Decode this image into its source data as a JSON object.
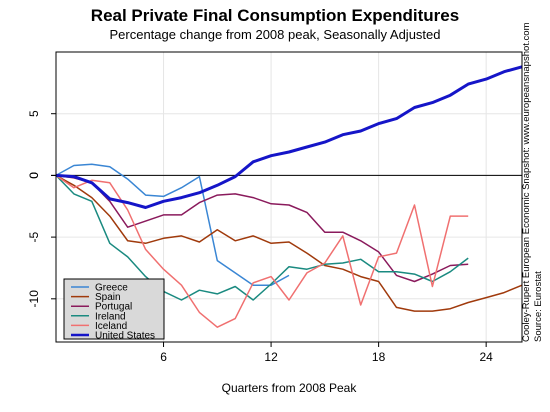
{
  "chart_data": {
    "type": "line",
    "title": "Real Private Final Consumption Expenditures",
    "subtitle": "Percentage change from 2008 peak, Seasonally Adjusted",
    "xlabel": "Quarters from 2008 Peak",
    "ylabel": "",
    "xlim": [
      0,
      26
    ],
    "ylim": [
      -13.5,
      10
    ],
    "xticks": [
      6,
      12,
      18,
      24
    ],
    "yticks": [
      5,
      0,
      -5,
      -10
    ],
    "grid": true,
    "legend_position": "bottom-left",
    "side_notes": [
      "Cooley-Rupert European Economic Snapshot:  www.europeansnapshot.com",
      "Source:  Eurostat"
    ],
    "series": [
      {
        "name": "Greece",
        "color": "#3a86d4",
        "width": 1.5,
        "x": [
          0,
          1,
          2,
          3,
          4,
          5,
          6,
          7,
          8,
          9,
          10,
          11,
          12,
          13
        ],
        "y": [
          0,
          0.8,
          0.9,
          0.7,
          -0.3,
          -1.6,
          -1.7,
          -1.0,
          -0.1,
          -6.9,
          -7.9,
          -8.9,
          -8.9,
          -8.1
        ]
      },
      {
        "name": "Spain",
        "color": "#a03a0c",
        "width": 1.5,
        "x": [
          0,
          1,
          2,
          3,
          4,
          5,
          6,
          7,
          8,
          9,
          10,
          11,
          12,
          13,
          14,
          15,
          16,
          17,
          18,
          19,
          20,
          21,
          22,
          23,
          24,
          25,
          26
        ],
        "y": [
          0,
          -0.8,
          -1.8,
          -3.3,
          -5.3,
          -5.5,
          -5.1,
          -4.9,
          -5.4,
          -4.4,
          -5.3,
          -4.9,
          -5.5,
          -5.4,
          -6.3,
          -7.3,
          -7.6,
          -8.2,
          -8.6,
          -10.7,
          -11.0,
          -11.0,
          -10.8,
          -10.3,
          -9.9,
          -9.5,
          -8.9
        ]
      },
      {
        "name": "Portugal",
        "color": "#8a1a5c",
        "width": 1.5,
        "x": [
          0,
          1,
          2,
          3,
          4,
          5,
          6,
          7,
          8,
          9,
          10,
          11,
          12,
          13,
          14,
          15,
          16,
          17,
          18,
          19,
          20,
          21,
          22,
          23
        ],
        "y": [
          0,
          -0.2,
          -0.6,
          -2.1,
          -4.2,
          -3.7,
          -3.2,
          -3.2,
          -2.2,
          -1.6,
          -1.5,
          -1.8,
          -2.3,
          -2.4,
          -3.0,
          -4.6,
          -4.6,
          -5.3,
          -6.2,
          -8.1,
          -8.6,
          -8.0,
          -7.3,
          -7.2
        ]
      },
      {
        "name": "Ireland",
        "color": "#1a8a80",
        "width": 1.5,
        "x": [
          0,
          1,
          2,
          3,
          4,
          5,
          6,
          7,
          8,
          9,
          10,
          11,
          12,
          13,
          14,
          15,
          16,
          17,
          18,
          19,
          20,
          21,
          22,
          23
        ],
        "y": [
          0,
          -1.5,
          -2.1,
          -5.5,
          -6.6,
          -8.2,
          -9.4,
          -10.1,
          -9.3,
          -9.6,
          -9.0,
          -10.1,
          -8.8,
          -7.4,
          -7.6,
          -7.2,
          -7.1,
          -6.8,
          -7.8,
          -7.8,
          -8.0,
          -8.6,
          -7.8,
          -6.7
        ]
      },
      {
        "name": "Iceland",
        "color": "#f07070",
        "width": 1.5,
        "x": [
          0,
          1,
          2,
          3,
          4,
          5,
          6,
          7,
          8,
          9,
          10,
          11,
          12,
          13,
          14,
          15,
          16,
          17,
          18,
          19,
          20,
          21,
          22,
          23
        ],
        "y": [
          0,
          -1.0,
          -0.4,
          -0.6,
          -2.8,
          -6.0,
          -7.6,
          -8.9,
          -11.1,
          -12.3,
          -11.6,
          -8.7,
          -8.2,
          -10.1,
          -7.9,
          -7.1,
          -4.9,
          -10.5,
          -6.6,
          -6.3,
          -2.4,
          -9.0,
          -3.3,
          -3.3
        ]
      },
      {
        "name": "United States",
        "color": "#1515c8",
        "width": 3,
        "x": [
          0,
          1,
          2,
          3,
          4,
          5,
          6,
          7,
          8,
          9,
          10,
          11,
          12,
          13,
          14,
          15,
          16,
          17,
          18,
          19,
          20,
          21,
          22,
          23,
          24,
          25,
          26
        ],
        "y": [
          0,
          -0.1,
          -0.6,
          -1.9,
          -2.2,
          -2.6,
          -2.1,
          -1.8,
          -1.4,
          -0.8,
          -0.1,
          1.1,
          1.6,
          1.9,
          2.3,
          2.7,
          3.3,
          3.6,
          4.2,
          4.6,
          5.5,
          5.9,
          6.5,
          7.4,
          7.8,
          8.4,
          8.8
        ]
      }
    ]
  }
}
